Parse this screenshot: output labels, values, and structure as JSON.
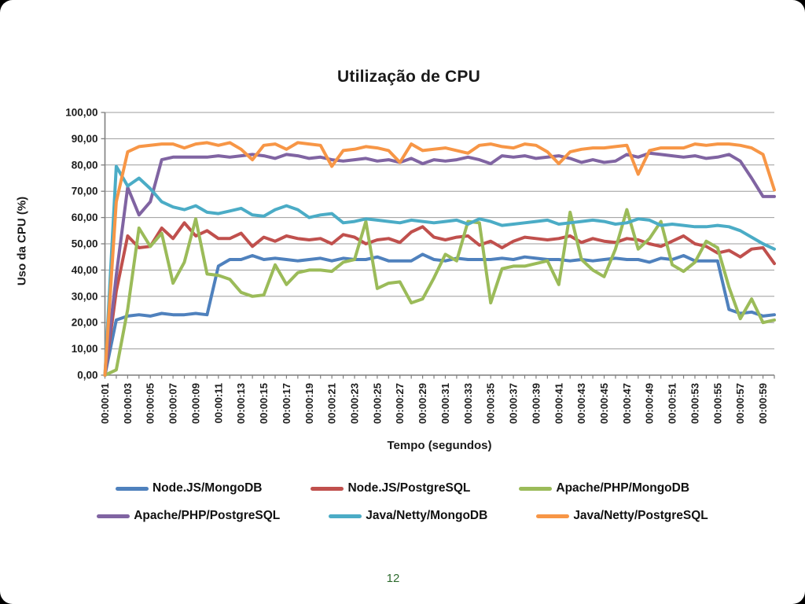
{
  "page": {
    "number": "12"
  },
  "chart_data": {
    "type": "line",
    "title": "Utilização de CPU",
    "xlabel": "Tempo (segundos)",
    "ylabel": "Uso da CPU (%)",
    "ylim": [
      0,
      100
    ],
    "ytick_step": 10,
    "ytick_labels": [
      "0,00",
      "10,00",
      "20,00",
      "30,00",
      "40,00",
      "50,00",
      "60,00",
      "70,00",
      "80,00",
      "90,00",
      "100,00"
    ],
    "x_range_seconds": [
      1,
      60
    ],
    "xtick_labels": [
      "00:00:01",
      "00:00:03",
      "00:00:05",
      "00:00:07",
      "00:00:09",
      "00:00:11",
      "00:00:13",
      "00:00:15",
      "00:00:17",
      "00:00:19",
      "00:00:21",
      "00:00:23",
      "00:00:25",
      "00:00:27",
      "00:00:29",
      "00:00:31",
      "00:00:33",
      "00:00:35",
      "00:00:37",
      "00:00:39",
      "00:00:41",
      "00:00:43",
      "00:00:45",
      "00:00:47",
      "00:00:49",
      "00:00:51",
      "00:00:53",
      "00:00:55",
      "00:00:57",
      "00:00:59"
    ],
    "grid": true,
    "legend_position": "bottom",
    "legend_rows": [
      [
        0,
        1,
        2
      ],
      [
        3,
        4,
        5
      ]
    ],
    "series": [
      {
        "name": "Node.JS/MongoDB",
        "color": "#4F81BD",
        "values": [
          0,
          21,
          22.5,
          23,
          22.5,
          23.5,
          23,
          23,
          23.5,
          23,
          41.5,
          44,
          44,
          45.5,
          44,
          44.5,
          44,
          43.5,
          44,
          44.5,
          43.5,
          44.5,
          44,
          44,
          45,
          43.5,
          43.5,
          43.5,
          46,
          44,
          43.5,
          44.5,
          44,
          44,
          44,
          44.5,
          44,
          45,
          44.5,
          44,
          44,
          43.5,
          44,
          43.5,
          44,
          44.5,
          44,
          44,
          43,
          44.5,
          44,
          45.5,
          43.5,
          43.5,
          43.5,
          25,
          23.5,
          24,
          22.5,
          23
        ]
      },
      {
        "name": "Node.JS/PostgreSQL",
        "color": "#C0504D",
        "values": [
          0,
          32,
          53,
          48.5,
          49,
          56,
          52,
          58,
          53,
          55,
          52,
          52,
          54,
          49,
          52.5,
          51,
          53,
          52,
          51.5,
          52,
          50,
          53.5,
          52.5,
          50,
          51.5,
          52,
          50.5,
          54.5,
          56.5,
          52.5,
          51.5,
          52.5,
          53,
          49.5,
          51,
          48.5,
          51,
          52.5,
          52,
          51.5,
          52,
          53,
          50.5,
          52,
          51,
          50.5,
          52,
          51.5,
          50,
          49,
          51,
          53,
          50,
          49,
          46.5,
          47.5,
          45,
          48,
          48.5,
          42.5
        ]
      },
      {
        "name": "Apache/PHP/MongoDB",
        "color": "#9BBB59",
        "values": [
          0,
          2,
          25,
          56,
          49,
          54,
          35,
          43,
          59.5,
          38.5,
          38,
          36.5,
          31.5,
          30,
          30.5,
          42,
          34.5,
          39,
          40,
          40,
          39.5,
          43,
          44,
          58.5,
          33,
          35,
          35.5,
          27.5,
          29,
          37,
          46,
          43.5,
          58.5,
          58,
          27.5,
          40.5,
          41.5,
          41.5,
          42.5,
          43.5,
          34.5,
          62,
          44,
          40,
          37.5,
          48,
          63,
          48,
          52,
          58.5,
          42,
          39.5,
          43,
          51,
          48.5,
          33.5,
          21.5,
          29,
          20,
          21
        ]
      },
      {
        "name": "Apache/PHP/PostgreSQL",
        "color": "#8064A2",
        "values": [
          0,
          38,
          71.5,
          61,
          66,
          82,
          83,
          83,
          83,
          83,
          83.5,
          83,
          83.5,
          84,
          83.5,
          82.5,
          84,
          83.5,
          82.5,
          83,
          82,
          81.5,
          82,
          82.5,
          81.5,
          82,
          81,
          82.5,
          80.5,
          82,
          81.5,
          82,
          83,
          82,
          80.5,
          83.5,
          83,
          83.5,
          82.5,
          83,
          83.5,
          82.5,
          81,
          82,
          81,
          81.5,
          84,
          83,
          84.5,
          84,
          83.5,
          83,
          83.5,
          82.5,
          83,
          84,
          81.5,
          75,
          68,
          68
        ]
      },
      {
        "name": "Java/Netty/MongoDB",
        "color": "#4BACC6",
        "values": [
          0,
          79.5,
          72,
          75,
          71,
          66,
          64,
          63,
          64.5,
          62,
          61.5,
          62.5,
          63.5,
          61,
          60.5,
          63,
          64.5,
          63,
          60,
          61,
          61.5,
          58,
          58.5,
          59.5,
          59,
          58.5,
          58,
          59,
          58.5,
          58,
          58.5,
          59,
          57.5,
          59.5,
          58.5,
          57,
          57.5,
          58,
          58.5,
          59,
          57.5,
          58,
          58.5,
          59,
          58.5,
          57.5,
          58,
          59.5,
          59,
          57,
          57.5,
          57,
          56.5,
          56.5,
          57,
          56.5,
          55,
          52.5,
          50,
          48
        ]
      },
      {
        "name": "Java/Netty/PostgreSQL",
        "color": "#F79646",
        "values": [
          0,
          66,
          85,
          87,
          87.5,
          88,
          88,
          86.5,
          88,
          88.5,
          87.5,
          88.5,
          86,
          82,
          87.5,
          88,
          86,
          88.5,
          88,
          87.5,
          79.5,
          85.5,
          86,
          87,
          86.5,
          85.5,
          81,
          88,
          85.5,
          86,
          86.5,
          85.5,
          84.5,
          87.5,
          88,
          87,
          86.5,
          88,
          87.5,
          85,
          80.5,
          85,
          86,
          86.5,
          86.5,
          87,
          87.5,
          76.5,
          85.5,
          86.5,
          86.5,
          86.5,
          88,
          87.5,
          88,
          88,
          87.5,
          86.5,
          84,
          70.5
        ]
      }
    ]
  }
}
